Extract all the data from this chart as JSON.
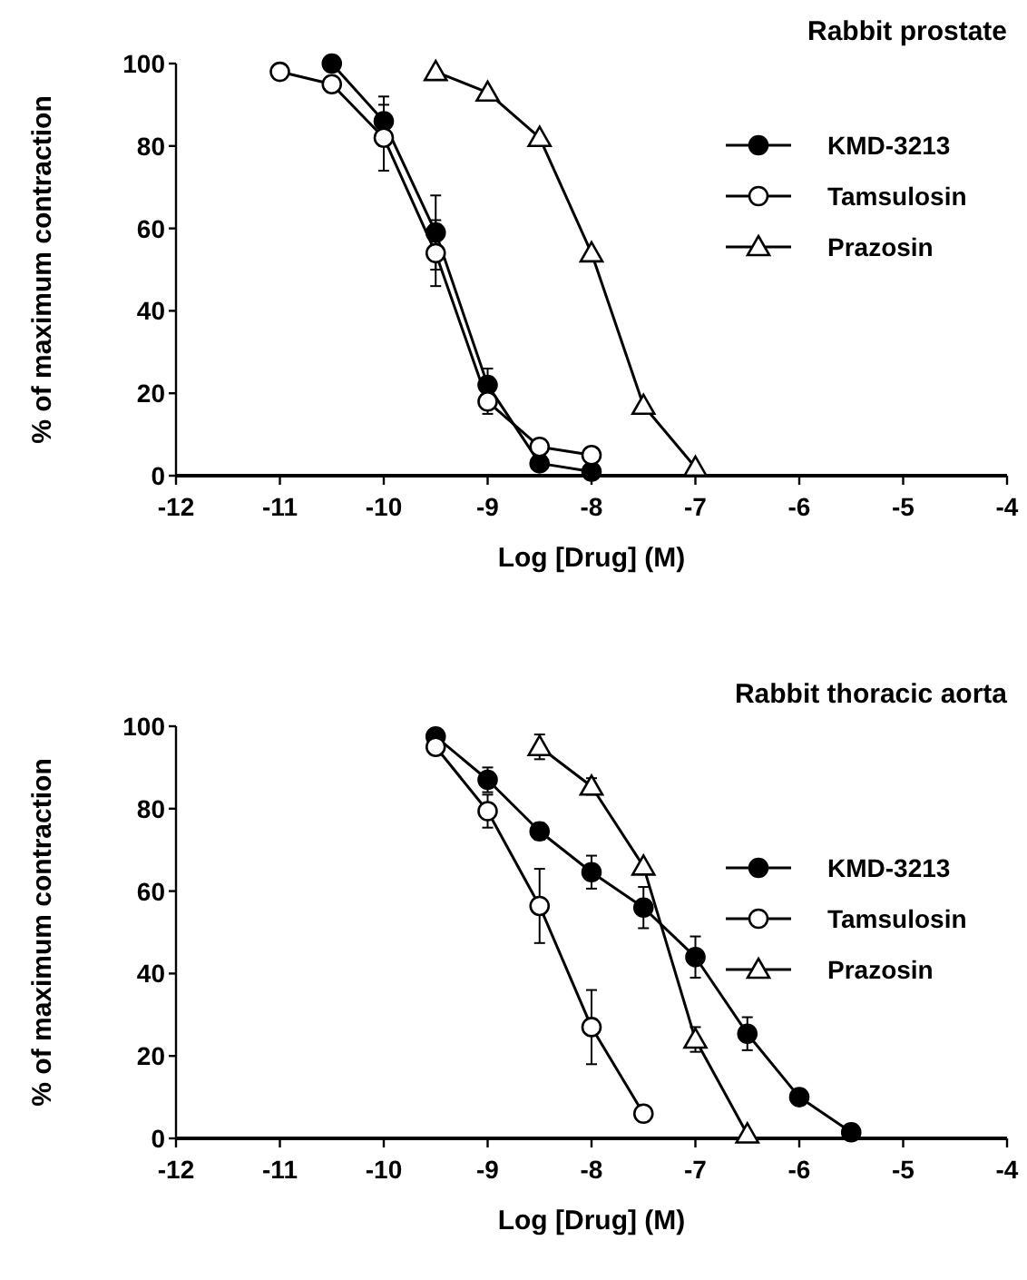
{
  "chart_data": [
    {
      "type": "line",
      "title": "Rabbit prostate",
      "xlabel": "Log [Drug] (M)",
      "ylabel": "% of maximum contraction",
      "xlim": [
        -12,
        -4
      ],
      "xticks": [
        -12,
        -11,
        -10,
        -9,
        -8,
        -7,
        -6,
        -5,
        -4
      ],
      "ylim": [
        0,
        100
      ],
      "yticks": [
        0,
        20,
        40,
        60,
        80,
        100
      ],
      "legend": "top right",
      "grid": false,
      "series": [
        {
          "name": "KMD-3213",
          "color": "#000000",
          "marker": "circle",
          "x": [
            -10.5,
            -10,
            -9.5,
            -9,
            -8.5,
            -8
          ],
          "values": [
            100,
            86,
            59,
            22,
            3,
            1
          ],
          "errors": [
            null,
            6,
            9,
            4,
            null,
            null
          ]
        },
        {
          "name": "Tamsulosin",
          "color": "#000000",
          "marker": "circle",
          "x": [
            -11,
            -10.5,
            -10,
            -9.5,
            -9,
            -8.5,
            -8
          ],
          "values": [
            98,
            95,
            82,
            54,
            18,
            7,
            5
          ],
          "errors": [
            null,
            null,
            8,
            8,
            3,
            null,
            null
          ]
        },
        {
          "name": "Prazosin",
          "color": "#000000",
          "marker": "triangle",
          "x": [
            -9.5,
            -9,
            -8.5,
            -8,
            -7.5,
            -7
          ],
          "values": [
            98,
            93,
            82,
            54,
            17,
            2
          ],
          "errors": [
            null,
            null,
            null,
            null,
            null,
            null
          ]
        }
      ]
    },
    {
      "type": "line",
      "title": "Rabbit thoracic aorta",
      "xlabel": "Log [Drug] (M)",
      "ylabel": "% of maximum contraction",
      "xlim": [
        -12,
        -4
      ],
      "xticks": [
        -12,
        -11,
        -10,
        -9,
        -8,
        -7,
        -6,
        -5,
        -4
      ],
      "ylim": [
        0,
        100
      ],
      "yticks": [
        0,
        20,
        40,
        60,
        80,
        100
      ],
      "legend": "right",
      "grid": false,
      "series": [
        {
          "name": "KMD-3213",
          "color": "#000000",
          "marker": "circle",
          "x": [
            -9.5,
            -9,
            -8.5,
            -8,
            -7.5,
            -7,
            -6.5,
            -6,
            -5.5
          ],
          "values": [
            97.5,
            87,
            74.5,
            64.6,
            56,
            44,
            25.4,
            10,
            1.5
          ],
          "errors": [
            null,
            3,
            2,
            4,
            5,
            5,
            4,
            null,
            null
          ]
        },
        {
          "name": "Tamsulosin",
          "color": "#000000",
          "marker": "circle",
          "x": [
            -9.5,
            -9,
            -8.5,
            -8,
            -7.5
          ],
          "values": [
            95,
            79.4,
            56.4,
            27,
            6
          ],
          "errors": [
            null,
            4,
            9,
            9,
            null
          ]
        },
        {
          "name": "Prazosin",
          "color": "#000000",
          "marker": "triangle",
          "x": [
            -8.5,
            -8,
            -7.5,
            -7,
            -6.5
          ],
          "values": [
            95,
            85.4,
            66,
            24,
            1
          ],
          "errors": [
            3,
            2,
            null,
            3,
            null
          ]
        }
      ]
    }
  ]
}
